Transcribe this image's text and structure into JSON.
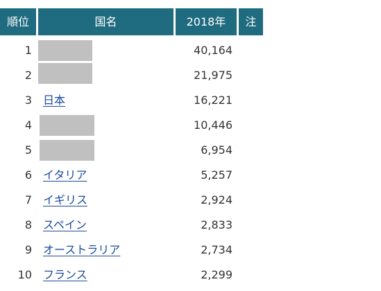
{
  "table": {
    "headers": {
      "rank": "順位",
      "country": "国名",
      "year": "2018年",
      "note": "注"
    },
    "rows": [
      {
        "rank": "1",
        "country": "",
        "redacted": true,
        "value": "40,164"
      },
      {
        "rank": "2",
        "country": "",
        "redacted": true,
        "value": "21,975"
      },
      {
        "rank": "3",
        "country": "日本",
        "redacted": false,
        "value": "16,221"
      },
      {
        "rank": "4",
        "country": "",
        "redacted": true,
        "value": "10,446"
      },
      {
        "rank": "5",
        "country": "",
        "redacted": true,
        "value": "6,954"
      },
      {
        "rank": "6",
        "country": "イタリア",
        "redacted": false,
        "value": "5,257"
      },
      {
        "rank": "7",
        "country": "イギリス",
        "redacted": false,
        "value": "2,924"
      },
      {
        "rank": "8",
        "country": "スペイン",
        "redacted": false,
        "value": "2,833"
      },
      {
        "rank": "9",
        "country": "オーストラリア",
        "redacted": false,
        "value": "2,734"
      },
      {
        "rank": "10",
        "country": "フランス",
        "redacted": false,
        "value": "2,299"
      }
    ]
  },
  "colors": {
    "header_bg": "#1f6b7f",
    "header_text": "#ffffff",
    "link": "#1a4a9c",
    "redaction": "#c0c0c0",
    "body_text": "#333333"
  }
}
